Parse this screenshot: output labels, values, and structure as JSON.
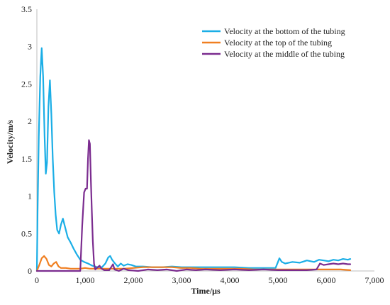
{
  "chart_data": {
    "type": "line",
    "xlabel": "Time/μs",
    "ylabel": "Velocity/m/s",
    "xlim": [
      0,
      7000
    ],
    "ylim": [
      0,
      3.5
    ],
    "x_ticks": [
      "0",
      "1,000",
      "2,000",
      "3,000",
      "4,000",
      "5,000",
      "6,000",
      "7,000"
    ],
    "y_ticks": [
      "0",
      "0.5",
      "1",
      "1.5",
      "2",
      "2.5",
      "3",
      "3.5"
    ],
    "grid": false,
    "legend_position": "top-right",
    "series": [
      {
        "name": "Velocity at the bottom of the tubing",
        "color": "#1BAEE6",
        "points": [
          [
            0,
            0
          ],
          [
            15,
            0.8
          ],
          [
            40,
            1.8
          ],
          [
            70,
            2.6
          ],
          [
            100,
            2.98
          ],
          [
            130,
            2.6
          ],
          [
            160,
            1.8
          ],
          [
            185,
            1.3
          ],
          [
            210,
            1.45
          ],
          [
            240,
            2.2
          ],
          [
            270,
            2.55
          ],
          [
            300,
            2.1
          ],
          [
            330,
            1.5
          ],
          [
            360,
            1.05
          ],
          [
            390,
            0.75
          ],
          [
            420,
            0.55
          ],
          [
            460,
            0.5
          ],
          [
            500,
            0.62
          ],
          [
            540,
            0.7
          ],
          [
            580,
            0.6
          ],
          [
            640,
            0.45
          ],
          [
            700,
            0.38
          ],
          [
            760,
            0.3
          ],
          [
            830,
            0.22
          ],
          [
            900,
            0.15
          ],
          [
            980,
            0.12
          ],
          [
            1060,
            0.1
          ],
          [
            1150,
            0.07
          ],
          [
            1250,
            0.05
          ],
          [
            1350,
            0.05
          ],
          [
            1420,
            0.1
          ],
          [
            1480,
            0.18
          ],
          [
            1520,
            0.2
          ],
          [
            1560,
            0.15
          ],
          [
            1620,
            0.1
          ],
          [
            1680,
            0.06
          ],
          [
            1740,
            0.1
          ],
          [
            1800,
            0.07
          ],
          [
            1880,
            0.09
          ],
          [
            1960,
            0.08
          ],
          [
            2050,
            0.06
          ],
          [
            2200,
            0.06
          ],
          [
            2400,
            0.05
          ],
          [
            2600,
            0.05
          ],
          [
            2800,
            0.06
          ],
          [
            3000,
            0.05
          ],
          [
            3200,
            0.05
          ],
          [
            3500,
            0.05
          ],
          [
            3800,
            0.05
          ],
          [
            4100,
            0.05
          ],
          [
            4400,
            0.04
          ],
          [
            4700,
            0.04
          ],
          [
            4950,
            0.04
          ],
          [
            5000,
            0.12
          ],
          [
            5030,
            0.17
          ],
          [
            5080,
            0.12
          ],
          [
            5150,
            0.1
          ],
          [
            5300,
            0.12
          ],
          [
            5450,
            0.11
          ],
          [
            5600,
            0.14
          ],
          [
            5750,
            0.12
          ],
          [
            5850,
            0.15
          ],
          [
            5950,
            0.14
          ],
          [
            6050,
            0.13
          ],
          [
            6150,
            0.15
          ],
          [
            6250,
            0.14
          ],
          [
            6350,
            0.16
          ],
          [
            6450,
            0.15
          ],
          [
            6500,
            0.16
          ]
        ]
      },
      {
        "name": "Velocity at the top of the tubing",
        "color": "#F07F21",
        "points": [
          [
            0,
            0
          ],
          [
            50,
            0.08
          ],
          [
            100,
            0.17
          ],
          [
            150,
            0.2
          ],
          [
            200,
            0.16
          ],
          [
            250,
            0.08
          ],
          [
            300,
            0.06
          ],
          [
            350,
            0.1
          ],
          [
            400,
            0.12
          ],
          [
            450,
            0.06
          ],
          [
            500,
            0.04
          ],
          [
            600,
            0.04
          ],
          [
            700,
            0.03
          ],
          [
            800,
            0.03
          ],
          [
            900,
            0.03
          ],
          [
            1000,
            0.04
          ],
          [
            1100,
            0.03
          ],
          [
            1200,
            0.03
          ],
          [
            1300,
            0.03
          ],
          [
            1400,
            0.03
          ],
          [
            1500,
            0.03
          ],
          [
            1600,
            0.03
          ],
          [
            1800,
            0.03
          ],
          [
            2000,
            0.04
          ],
          [
            2200,
            0.05
          ],
          [
            2400,
            0.05
          ],
          [
            2600,
            0.05
          ],
          [
            2800,
            0.05
          ],
          [
            3000,
            0.04
          ],
          [
            3200,
            0.04
          ],
          [
            3400,
            0.03
          ],
          [
            3600,
            0.03
          ],
          [
            3800,
            0.03
          ],
          [
            4000,
            0.03
          ],
          [
            4200,
            0.03
          ],
          [
            4500,
            0.02
          ],
          [
            4800,
            0.02
          ],
          [
            5100,
            0.02
          ],
          [
            5400,
            0.02
          ],
          [
            5700,
            0.02
          ],
          [
            6000,
            0.02
          ],
          [
            6300,
            0.02
          ],
          [
            6500,
            0.01
          ]
        ]
      },
      {
        "name": "Velocity at the middle of the tubing",
        "color": "#7B2C8F",
        "points": [
          [
            0,
            0
          ],
          [
            500,
            0
          ],
          [
            900,
            0
          ],
          [
            940,
            0.6
          ],
          [
            980,
            1.05
          ],
          [
            1010,
            1.1
          ],
          [
            1040,
            1.1
          ],
          [
            1060,
            1.5
          ],
          [
            1080,
            1.75
          ],
          [
            1100,
            1.7
          ],
          [
            1120,
            1.2
          ],
          [
            1140,
            0.8
          ],
          [
            1160,
            0.4
          ],
          [
            1185,
            0.1
          ],
          [
            1210,
            0.02
          ],
          [
            1260,
            0.05
          ],
          [
            1300,
            0.07
          ],
          [
            1340,
            0.03
          ],
          [
            1400,
            0.01
          ],
          [
            1500,
            0.01
          ],
          [
            1550,
            0.06
          ],
          [
            1580,
            0.09
          ],
          [
            1610,
            0.02
          ],
          [
            1700,
            0.0
          ],
          [
            1800,
            0.03
          ],
          [
            1900,
            0.01
          ],
          [
            2100,
            0.0
          ],
          [
            2300,
            0.02
          ],
          [
            2500,
            0.01
          ],
          [
            2700,
            0.02
          ],
          [
            2900,
            0.0
          ],
          [
            3100,
            0.02
          ],
          [
            3300,
            0.01
          ],
          [
            3500,
            0.02
          ],
          [
            3800,
            0.01
          ],
          [
            4100,
            0.02
          ],
          [
            4400,
            0.01
          ],
          [
            4700,
            0.02
          ],
          [
            5000,
            0.01
          ],
          [
            5300,
            0.01
          ],
          [
            5600,
            0.01
          ],
          [
            5800,
            0.02
          ],
          [
            5870,
            0.1
          ],
          [
            5950,
            0.08
          ],
          [
            6050,
            0.09
          ],
          [
            6150,
            0.1
          ],
          [
            6250,
            0.09
          ],
          [
            6350,
            0.1
          ],
          [
            6450,
            0.09
          ],
          [
            6500,
            0.09
          ]
        ]
      }
    ]
  }
}
